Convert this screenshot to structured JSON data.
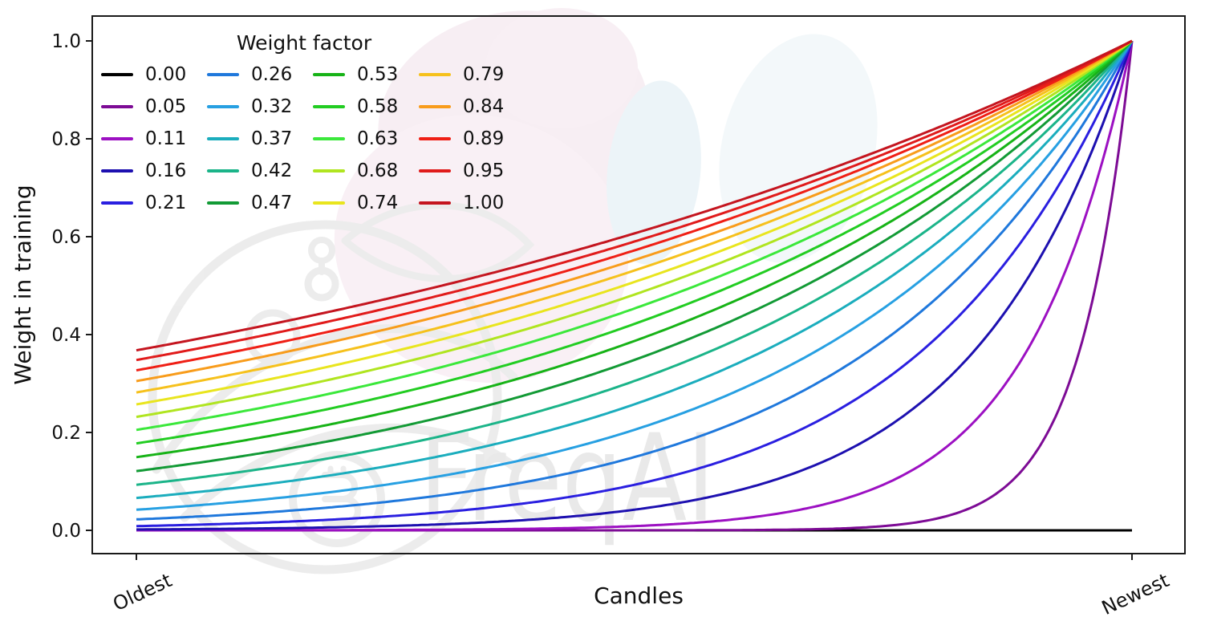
{
  "figure": {
    "background": "#ffffff",
    "axis_color": "#1a1a1a",
    "text_color": "#111111"
  },
  "watermark": {
    "text": "FreqAI",
    "gray": "#ececec",
    "text_gray": "#e9e9e9",
    "petal_pink": "#f7eef3",
    "petal_blue": "#eaf2f7"
  },
  "chart_data": {
    "type": "line",
    "title": "",
    "xlabel": "Candles",
    "ylabel": "Weight in training",
    "legend_title": "Weight factor",
    "legend_position": "upper left, 4 columns, column-major, no frame",
    "grid": false,
    "x_axis": {
      "tick_labels": [
        "Oldest",
        "Newest"
      ],
      "tick_positions_normalized": [
        0,
        1
      ],
      "tick_rotation_deg": -25
    },
    "y_axis": {
      "tick_values": [
        0.0,
        0.2,
        0.4,
        0.6,
        0.8,
        1.0
      ],
      "tick_labels": [
        "0.0",
        "0.2",
        "0.4",
        "0.6",
        "0.8",
        "1.0"
      ],
      "ylim": [
        0,
        1
      ]
    },
    "curve_formula": "weight(x) = exp(-(1-x)/w) for x in [0,1] (Oldest→Newest); w=0 gives flat 0",
    "series": [
      {
        "label": "0.00",
        "w": 0.0,
        "color": "#000000",
        "y_oldest": 0.0,
        "y_newest": 0.0
      },
      {
        "label": "0.05",
        "w": 0.0526,
        "color": "#7d0b95",
        "y_oldest": 0.0,
        "y_newest": 1.0
      },
      {
        "label": "0.11",
        "w": 0.1053,
        "color": "#9c10c2",
        "y_oldest": 0.0001,
        "y_newest": 1.0
      },
      {
        "label": "0.16",
        "w": 0.1579,
        "color": "#1d10b0",
        "y_oldest": 0.0018,
        "y_newest": 1.0
      },
      {
        "label": "0.21",
        "w": 0.2105,
        "color": "#2a1fe0",
        "y_oldest": 0.0087,
        "y_newest": 1.0
      },
      {
        "label": "0.26",
        "w": 0.2632,
        "color": "#1f78dc",
        "y_oldest": 0.0224,
        "y_newest": 1.0
      },
      {
        "label": "0.32",
        "w": 0.3158,
        "color": "#27a0e2",
        "y_oldest": 0.0421,
        "y_newest": 1.0
      },
      {
        "label": "0.37",
        "w": 0.3684,
        "color": "#1badbd",
        "y_oldest": 0.0662,
        "y_newest": 1.0
      },
      {
        "label": "0.42",
        "w": 0.4211,
        "color": "#1bb489",
        "y_oldest": 0.093,
        "y_newest": 1.0
      },
      {
        "label": "0.47",
        "w": 0.4737,
        "color": "#129a35",
        "y_oldest": 0.1211,
        "y_newest": 1.0
      },
      {
        "label": "0.53",
        "w": 0.5263,
        "color": "#17b317",
        "y_oldest": 0.1496,
        "y_newest": 1.0
      },
      {
        "label": "0.58",
        "w": 0.5789,
        "color": "#22cd22",
        "y_oldest": 0.1779,
        "y_newest": 1.0
      },
      {
        "label": "0.63",
        "w": 0.6316,
        "color": "#3be83b",
        "y_oldest": 0.2055,
        "y_newest": 1.0
      },
      {
        "label": "0.68",
        "w": 0.6842,
        "color": "#b0e520",
        "y_oldest": 0.232,
        "y_newest": 1.0
      },
      {
        "label": "0.74",
        "w": 0.7368,
        "color": "#e9e51e",
        "y_oldest": 0.2573,
        "y_newest": 1.0
      },
      {
        "label": "0.79",
        "w": 0.7895,
        "color": "#f6c11c",
        "y_oldest": 0.2817,
        "y_newest": 1.0
      },
      {
        "label": "0.84",
        "w": 0.8421,
        "color": "#f89c1b",
        "y_oldest": 0.3048,
        "y_newest": 1.0
      },
      {
        "label": "0.89",
        "w": 0.8947,
        "color": "#ef1f15",
        "y_oldest": 0.3268,
        "y_newest": 1.0
      },
      {
        "label": "0.95",
        "w": 0.9474,
        "color": "#e01b1b",
        "y_oldest": 0.348,
        "y_newest": 1.0
      },
      {
        "label": "1.00",
        "w": 1.0,
        "color": "#c4151f",
        "y_oldest": 0.3679,
        "y_newest": 1.0
      }
    ]
  }
}
